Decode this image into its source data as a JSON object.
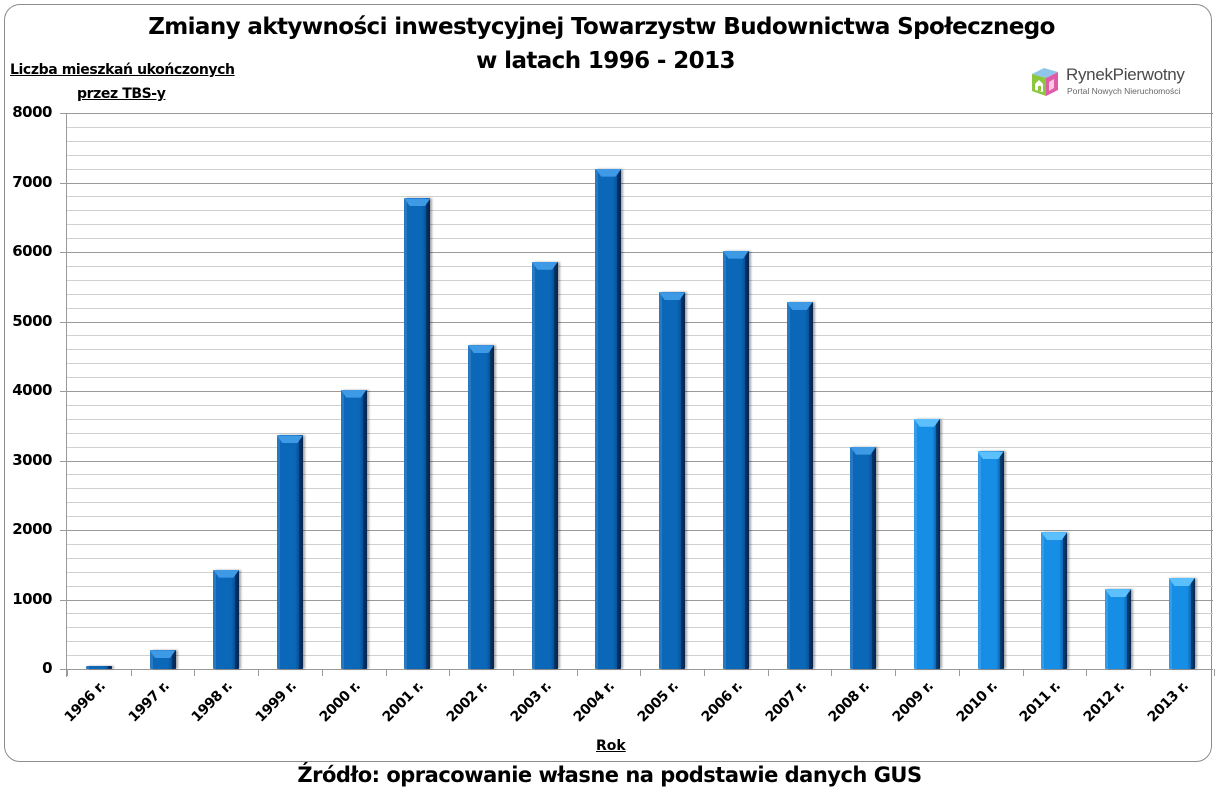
{
  "header": {
    "title_line1": "Zmiany aktywności inwestycyjnej Towarzystw Budownictwa Społecznego",
    "title_line2": "w latach 1996 - 2013"
  },
  "logo": {
    "name": "RynekPierwotny",
    "tagline": "Portal Nowych Nieruchomości"
  },
  "axes": {
    "y_title_line1": "Liczba mieszkań ukończonych",
    "y_title_line2": "przez TBS-y",
    "x_title": "Rok",
    "y_ticks": [
      "0",
      "1000",
      "2000",
      "3000",
      "4000",
      "5000",
      "6000",
      "7000",
      "8000"
    ]
  },
  "footer": {
    "source": "Źródło: opracowanie własne na podstawie danych GUS"
  },
  "colors": {
    "bar_dark": "#0b67b8",
    "bar_light": "#178ee6",
    "gridline_major": "#9a9a9a",
    "gridline_minor": "#d0d0d0"
  },
  "chart_data": {
    "type": "bar",
    "title": "Zmiany aktywności inwestycyjnej Towarzystw Budownictwa Społecznego w latach 1996 - 2013",
    "xlabel": "Rok",
    "ylabel": "Liczba mieszkań ukończonych przez TBS-y",
    "ylim": [
      0,
      8000
    ],
    "y_major_step": 1000,
    "y_minor_step": 200,
    "grid": true,
    "legend": null,
    "categories": [
      "1996 r.",
      "1997 r.",
      "1998 r.",
      "1999 r.",
      "2000 r.",
      "2001 r.",
      "2002 r.",
      "2003 r.",
      "2004 r.",
      "2005 r.",
      "2006 r.",
      "2007 r.",
      "2008 r.",
      "2009 r.",
      "2010 r.",
      "2011 r.",
      "2012 r.",
      "2013 r."
    ],
    "values": [
      50,
      270,
      1430,
      3360,
      4020,
      6770,
      4660,
      5860,
      7200,
      5420,
      6020,
      5280,
      3200,
      3600,
      3130,
      1970,
      1150,
      1310
    ],
    "bar_shade": [
      "dark",
      "dark",
      "dark",
      "dark",
      "dark",
      "dark",
      "dark",
      "dark",
      "dark",
      "dark",
      "dark",
      "dark",
      "dark",
      "light",
      "light",
      "light",
      "light",
      "light"
    ],
    "annotations": [
      "Źródło: opracowanie własne na podstawie danych GUS"
    ]
  }
}
